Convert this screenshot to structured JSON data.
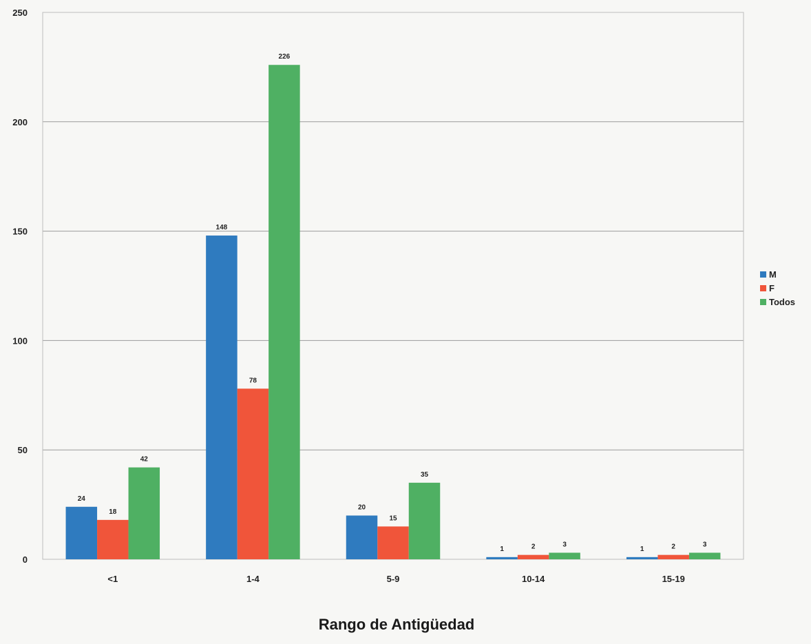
{
  "chart_data": {
    "type": "bar",
    "title": "",
    "xlabel": "Rango de Antigüedad",
    "ylabel": "",
    "categories": [
      "<1",
      "1-4",
      "5-9",
      "10-14",
      "15-19"
    ],
    "series": [
      {
        "name": "M",
        "values": [
          24,
          148,
          20,
          1,
          1
        ],
        "color": "#2f7bbf"
      },
      {
        "name": "F",
        "values": [
          18,
          78,
          15,
          2,
          2
        ],
        "color": "#f0553a"
      },
      {
        "name": "Todos",
        "values": [
          42,
          226,
          35,
          3,
          3
        ],
        "color": "#4fb063"
      }
    ],
    "ylim": [
      0,
      250
    ],
    "yticks": [
      0,
      50,
      100,
      150,
      200,
      250
    ],
    "grid": true,
    "legend": "right"
  }
}
